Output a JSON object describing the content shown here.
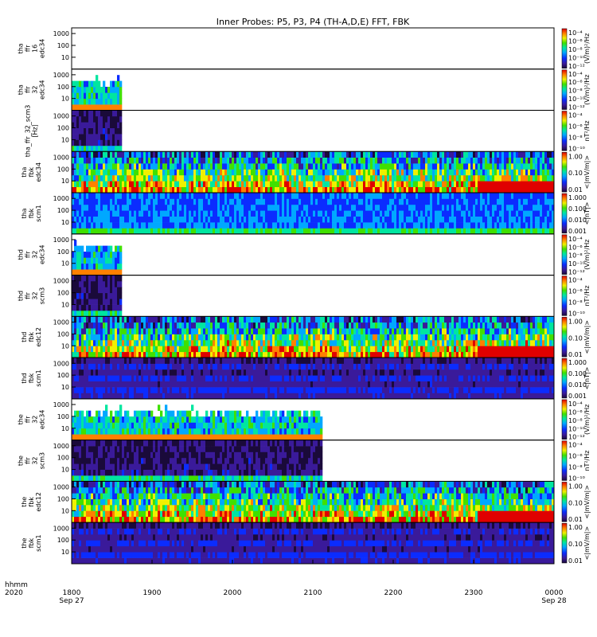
{
  "title": "Inner Probes: P5, P3, P4 (TH-A,D,E) FFT, FBK",
  "time_axis": {
    "label_line1": "hhmm",
    "label_line2": "2020",
    "ticks": [
      {
        "hhmm": "1800",
        "date": "Sep 27"
      },
      {
        "hhmm": "1900",
        "date": ""
      },
      {
        "hhmm": "2000",
        "date": ""
      },
      {
        "hhmm": "2100",
        "date": ""
      },
      {
        "hhmm": "2200",
        "date": ""
      },
      {
        "hhmm": "2300",
        "date": ""
      },
      {
        "hhmm": "0000",
        "date": "Sep 28"
      }
    ]
  },
  "chart_data": {
    "type": "heatmap",
    "x_range_hours": [
      18.0,
      24.0
    ],
    "y_scale": "log",
    "y_ticks": [
      "10",
      "100",
      "1000"
    ],
    "panels": [
      {
        "ylabel": [
          "tha",
          "ffr",
          "16",
          "edc34"
        ],
        "ylim": [
          1,
          3000
        ],
        "data_end_hour": 18.0,
        "colorbar_label": "(V/m)²/Hz",
        "colorbar_ticks": [
          "10⁻¹²",
          "10⁻¹⁰",
          "10⁻⁸",
          "10⁻⁶",
          "10⁻⁴"
        ],
        "kind": "fft_e"
      },
      {
        "ylabel": [
          "tha",
          "ffr",
          "32",
          "edc34"
        ],
        "ylim": [
          1,
          3000
        ],
        "data_end_hour": 18.6,
        "colorbar_label": "(V/m)²/Hz",
        "colorbar_ticks": [
          "10⁻¹²",
          "10⁻¹⁰",
          "10⁻⁸",
          "10⁻⁶",
          "10⁻⁴"
        ],
        "kind": "fft_e"
      },
      {
        "ylabel": [
          "tha_ffr_32_scm3",
          "[Hz]"
        ],
        "ylim": [
          1,
          3000
        ],
        "data_end_hour": 18.6,
        "colorbar_label": "nT²/Hz",
        "colorbar_ticks": [
          "10⁻¹⁰",
          "10⁻⁸",
          "10⁻⁶",
          "10⁻⁴"
        ],
        "kind": "fft_b"
      },
      {
        "ylabel": [
          "tha",
          "fbk",
          "edc34"
        ],
        "ylim": [
          1,
          3000
        ],
        "data_end_hour": 24.0,
        "colorbar_label": "<|mV/m|>",
        "colorbar_ticks": [
          "0.01",
          "0.10",
          "1.00"
        ],
        "kind": "fbk_e"
      },
      {
        "ylabel": [
          "tha",
          "fbk",
          "scm1"
        ],
        "ylim": [
          1,
          3000
        ],
        "data_end_hour": 24.0,
        "colorbar_label": "<|nT|>",
        "colorbar_ticks": [
          "0.001",
          "0.010",
          "0.100",
          "1.000"
        ],
        "kind": "fbk_b"
      },
      {
        "ylabel": [
          "thd",
          "ffr",
          "32",
          "edc34"
        ],
        "ylim": [
          1,
          3000
        ],
        "data_end_hour": 18.6,
        "colorbar_label": "(V/m)²/Hz",
        "colorbar_ticks": [
          "10⁻¹²",
          "10⁻¹⁰",
          "10⁻⁸",
          "10⁻⁶",
          "10⁻⁴"
        ],
        "kind": "fft_e"
      },
      {
        "ylabel": [
          "thd",
          "ffr",
          "32",
          "scm3"
        ],
        "ylim": [
          1,
          3000
        ],
        "data_end_hour": 18.6,
        "colorbar_label": "nT²/Hz",
        "colorbar_ticks": [
          "10⁻¹⁰",
          "10⁻⁸",
          "10⁻⁶",
          "10⁻⁴"
        ],
        "kind": "fft_b"
      },
      {
        "ylabel": [
          "thd",
          "fbk",
          "edc12"
        ],
        "ylim": [
          1,
          3000
        ],
        "data_end_hour": 24.0,
        "colorbar_label": "<|mV/m|>",
        "colorbar_ticks": [
          "0.01",
          "0.10",
          "1.00"
        ],
        "kind": "fbk_e"
      },
      {
        "ylabel": [
          "thd",
          "fbk",
          "scm1"
        ],
        "ylim": [
          1,
          3000
        ],
        "data_end_hour": 24.0,
        "colorbar_label": "<|nT|>",
        "colorbar_ticks": [
          "0.001",
          "0.010",
          "0.100",
          "1.000"
        ],
        "kind": "fbk_b2"
      },
      {
        "ylabel": [
          "the",
          "ffr",
          "32",
          "edc34"
        ],
        "ylim": [
          1,
          3000
        ],
        "data_end_hour": 21.1,
        "colorbar_label": "(V/m)²/Hz",
        "colorbar_ticks": [
          "10⁻¹²",
          "10⁻¹⁰",
          "10⁻⁸",
          "10⁻⁶",
          "10⁻⁴"
        ],
        "kind": "fft_e"
      },
      {
        "ylabel": [
          "the",
          "ffr",
          "32",
          "scm3"
        ],
        "ylim": [
          1,
          3000
        ],
        "data_end_hour": 21.1,
        "colorbar_label": "nT²/Hz",
        "colorbar_ticks": [
          "10⁻¹⁰",
          "10⁻⁸",
          "10⁻⁶",
          "10⁻⁴"
        ],
        "kind": "fft_b"
      },
      {
        "ylabel": [
          "the",
          "fbk",
          "edc12"
        ],
        "ylim": [
          1,
          3000
        ],
        "data_end_hour": 24.0,
        "colorbar_label": "<|mV/m|>",
        "colorbar_ticks": [
          "0.01",
          "0.10",
          "1.00"
        ],
        "kind": "fbk_e"
      },
      {
        "ylabel": [
          "the",
          "fbk",
          "scm1"
        ],
        "ylim": [
          1,
          3000
        ],
        "data_end_hour": 24.0,
        "colorbar_label": "<|mV/m|>",
        "colorbar_ticks": [
          "0.01",
          "0.10",
          "1.00"
        ],
        "kind": "fbk_b2"
      }
    ]
  }
}
